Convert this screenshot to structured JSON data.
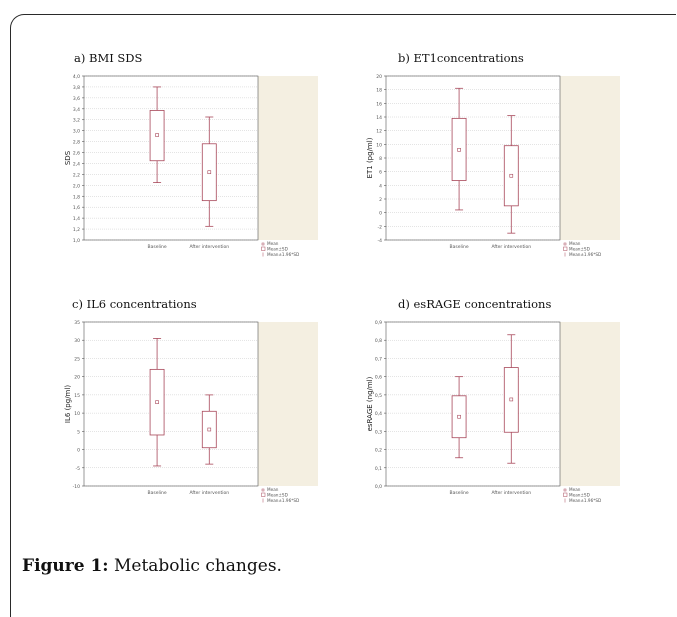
{
  "colors": {
    "box": "#a8485a",
    "plot_bg": "#f4efe1",
    "grid": "#c8c8c8",
    "axis": "#555555",
    "legend_text": "#555555"
  },
  "legend": [
    "Mean",
    "Mean±SD",
    "Mean±1.96*SD"
  ],
  "caption": {
    "label": "Figure 1:",
    "text": " Metabolic changes."
  },
  "chart_data": [
    {
      "type": "box",
      "title": "a) BMI SDS",
      "ylabel": "SDS",
      "ylim": [
        1.0,
        4.0
      ],
      "yticks": [
        "4,0",
        "3,8",
        "3,6",
        "3,4",
        "3,2",
        "3,0",
        "2,8",
        "2,6",
        "2,4",
        "2,2",
        "2,0",
        "1,8",
        "1,6",
        "1,4",
        "1,2",
        "1,0"
      ],
      "categories": [
        "Baseline",
        "After intervention"
      ],
      "series": [
        {
          "category": "Baseline",
          "mean": 2.92,
          "sd_low": 2.45,
          "sd_high": 3.37,
          "ci_low": 2.05,
          "ci_high": 3.8
        },
        {
          "category": "After intervention",
          "mean": 2.24,
          "sd_low": 1.72,
          "sd_high": 2.76,
          "ci_low": 1.25,
          "ci_high": 3.25
        }
      ]
    },
    {
      "type": "box",
      "title": "b) ET1concentrations",
      "ylabel": "ET1 (pg/ml)",
      "ylim": [
        -4,
        20
      ],
      "yticks": [
        "20",
        "18",
        "16",
        "14",
        "12",
        "10",
        "8",
        "6",
        "4",
        "2",
        "0",
        "-2",
        "-4"
      ],
      "categories": [
        "Baseline",
        "After intervention"
      ],
      "series": [
        {
          "category": "Baseline",
          "mean": 9.2,
          "sd_low": 4.7,
          "sd_high": 13.8,
          "ci_low": 0.4,
          "ci_high": 18.2
        },
        {
          "category": "After intervention",
          "mean": 5.4,
          "sd_low": 1.0,
          "sd_high": 9.8,
          "ci_low": -3.0,
          "ci_high": 14.2
        }
      ]
    },
    {
      "type": "box",
      "title": "c) IL6 concentrations",
      "ylabel": "IL6 (pg/ml)",
      "ylim": [
        -10,
        35
      ],
      "yticks": [
        "35",
        "30",
        "25",
        "20",
        "15",
        "10",
        "5",
        "0",
        "-5",
        "-10"
      ],
      "categories": [
        "Baseline",
        "After intervention"
      ],
      "series": [
        {
          "category": "Baseline",
          "mean": 13.0,
          "sd_low": 4.0,
          "sd_high": 22.0,
          "ci_low": -4.5,
          "ci_high": 30.5
        },
        {
          "category": "After intervention",
          "mean": 5.5,
          "sd_low": 0.5,
          "sd_high": 10.5,
          "ci_low": -4.0,
          "ci_high": 15.0
        }
      ]
    },
    {
      "type": "box",
      "title": "d) esRAGE concentrations",
      "ylabel": "esRAGE (ng/ml)",
      "ylim": [
        0.0,
        0.9
      ],
      "yticks": [
        "0,9",
        "0,8",
        "0,7",
        "0,6",
        "0,5",
        "0,4",
        "0,3",
        "0,2",
        "0,1",
        "0,0"
      ],
      "categories": [
        "Baseline",
        "After intervention"
      ],
      "series": [
        {
          "category": "Baseline",
          "mean": 0.38,
          "sd_low": 0.265,
          "sd_high": 0.495,
          "ci_low": 0.155,
          "ci_high": 0.6
        },
        {
          "category": "After intervention",
          "mean": 0.475,
          "sd_low": 0.295,
          "sd_high": 0.65,
          "ci_low": 0.125,
          "ci_high": 0.83
        }
      ]
    }
  ]
}
